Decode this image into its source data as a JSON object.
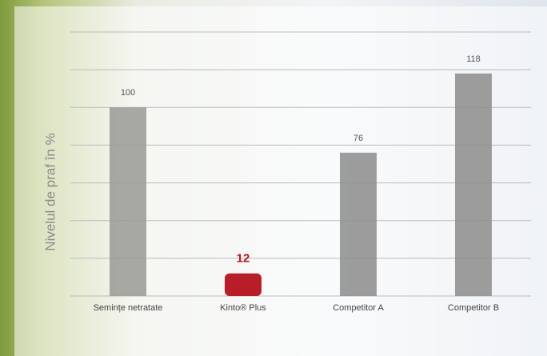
{
  "chart_data": {
    "type": "bar",
    "y_label": "Nivelul de praf în %",
    "categories": [
      "Semințe netratate",
      "Kinto® Plus",
      "Competitor A",
      "Competitor B"
    ],
    "values": [
      100,
      12,
      76,
      118
    ],
    "colors": [
      "#9a9a94",
      "#b3121b",
      "#8c8c8c",
      "#8c8c8c"
    ],
    "ylim": [
      0,
      140
    ],
    "yticks": [
      0,
      20,
      40,
      60,
      80,
      100,
      120,
      140
    ],
    "grid": true
  }
}
